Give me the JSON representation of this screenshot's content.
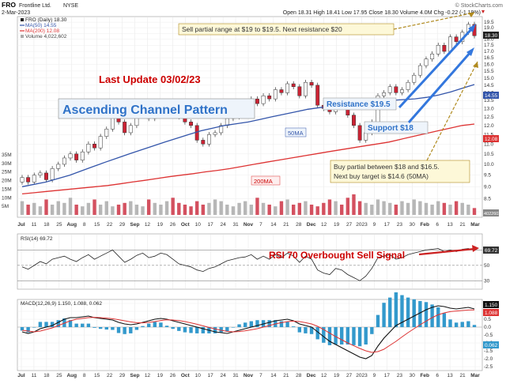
{
  "header": {
    "ticker": "FRO",
    "company": "Frontline Ltd.",
    "exchange": "NYSE",
    "date": "2-Mar-2023",
    "ohlc": "Open 18.31  High 18.41  Low 17.95  Close 18.30  Volume 4.0M  Chg -0.22 (-1.19%)",
    "chg_icon": "down-triangle-icon",
    "watermark": "© StockCharts.com"
  },
  "legend": {
    "price": "FRO (Daily) 18.30",
    "ma50": "MA(50) 14.55",
    "ma200": "MA(200) 12.08",
    "volume": "Volume 4,022,602"
  },
  "annotations": {
    "sell": "Sell partial range at $19 to $19.5. Next resistance $20",
    "last_update": "Last Update 03/02/23",
    "pattern": "Ascending Channel Pattern",
    "resistance": "Resistance $19.5",
    "support": "Support  $18",
    "ma50_tag": "50MA",
    "ma200_tag": "200MA",
    "buy_line1": "Buy partial between $18 and $16.5.",
    "buy_line2": "Next buy target is $14.6 (50MA)",
    "rsi_signal": "RSI 70 Overbought Sell Signal"
  },
  "rsi_panel": {
    "label": "RSI(14) 69.72",
    "badge": "69.72"
  },
  "macd_panel": {
    "label": "MACD(12,26,9) 1.150, 1.088, 0.062",
    "badge1": "1.150",
    "badge2": "1.088",
    "badge3": "0.062"
  },
  "colors": {
    "price": "#222222",
    "ma50": "#3355aa",
    "ma200": "#dd3333",
    "volume_up": "#aaaaaa",
    "volume_down": "#cc3344",
    "macd_hist": "#3399cc",
    "annotation_text": "#cc0000",
    "channel": "#3377dd",
    "arrow_gold": "#b08a1e"
  },
  "chart_data": {
    "type": "line",
    "title": "FRO Frontline Ltd. NYSE",
    "x_labels": [
      "Jul",
      "11",
      "18",
      "25",
      "Aug",
      "8",
      "15",
      "22",
      "29",
      "Sep",
      "12",
      "19",
      "26",
      "Oct",
      "10",
      "17",
      "24",
      "31",
      "Nov",
      "7",
      "14",
      "21",
      "28",
      "Dec",
      "12",
      "19",
      "27",
      "2023",
      "9",
      "17",
      "23",
      "30",
      "Feb",
      "6",
      "13",
      "21",
      "Mar"
    ],
    "price_ticks": [
      "19.5",
      "19.0",
      "18.5",
      "18.0",
      "17.5",
      "17.0",
      "16.5",
      "16.0",
      "15.5",
      "15.0",
      "14.5",
      "14.0",
      "13.5",
      "13.0",
      "12.5",
      "12.0",
      "11.5",
      "11.0",
      "10.5",
      "10.0",
      "9.5",
      "9.0",
      "8.5",
      "8.0"
    ],
    "volume_ticks": [
      "35M",
      "30M",
      "25M",
      "20M",
      "15M",
      "10M",
      "5M"
    ],
    "rsi_ticks": [
      "70",
      "50",
      "30"
    ],
    "macd_ticks": [
      "1.5",
      "1.0",
      "0.5",
      "0.0",
      "-0.5",
      "-1.0",
      "-1.5",
      "-2.0",
      "-2.5"
    ],
    "series": [
      {
        "name": "FRO (Daily) 18.30",
        "values": [
          9.4,
          9.2,
          9.5,
          9.6,
          9.3,
          9.8,
          10.0,
          10.3,
          10.5,
          10.2,
          10.6,
          11.0,
          10.8,
          11.4,
          11.8,
          12.5,
          12.2,
          11.6,
          12.0,
          12.6,
          12.9,
          12.4,
          12.8,
          13.2,
          13.4,
          13.0,
          12.5,
          12.2,
          12.0,
          11.2,
          11.0,
          11.5,
          11.6,
          12.0,
          12.4,
          12.5,
          12.9,
          13.1,
          13.6,
          13.3,
          13.8,
          13.6,
          14.2,
          14.0,
          14.6,
          14.4,
          13.8,
          14.7,
          14.5,
          13.2,
          13.0,
          12.8,
          13.4,
          13.2,
          12.6,
          12.0,
          11.2,
          11.6,
          12.2,
          13.8,
          14.0,
          14.4,
          14.0,
          14.2,
          14.7,
          15.2,
          15.9,
          16.4,
          16.8,
          17.5,
          17.0,
          18.2,
          17.8,
          18.6,
          19.3,
          18.3
        ]
      },
      {
        "name": "MA(50) 14.55",
        "values": [
          9.0,
          9.1,
          9.2,
          9.35,
          9.5,
          9.7,
          9.9,
          10.1,
          10.3,
          10.5,
          10.7,
          10.9,
          11.1,
          11.3,
          11.5,
          11.7,
          11.85,
          12.0,
          12.1,
          12.2,
          12.35,
          12.5,
          12.65,
          12.8,
          12.95,
          13.05,
          13.15,
          13.25,
          13.35,
          13.4,
          13.45,
          13.5,
          13.55,
          13.6,
          13.7,
          13.85,
          14.05,
          14.3,
          14.55
        ]
      },
      {
        "name": "MA(200) 12.08",
        "values": [
          8.7,
          8.75,
          8.8,
          8.85,
          8.9,
          8.95,
          9.0,
          9.05,
          9.12,
          9.2,
          9.27,
          9.35,
          9.43,
          9.5,
          9.57,
          9.65,
          9.72,
          9.8,
          9.9,
          10.0,
          10.1,
          10.2,
          10.3,
          10.4,
          10.5,
          10.6,
          10.7,
          10.8,
          10.9,
          11.0,
          11.1,
          11.25,
          11.4,
          11.55,
          11.7,
          11.85,
          12.0,
          12.08
        ]
      },
      {
        "name": "Volume 4,022,602",
        "values": [
          8,
          6,
          7,
          5,
          9,
          6,
          8,
          7,
          10,
          6,
          5,
          7,
          9,
          6,
          8,
          5,
          6,
          7,
          8,
          6,
          5,
          9,
          7,
          6,
          8,
          10,
          7,
          6,
          5,
          8,
          6,
          7,
          9,
          8,
          6,
          5,
          7,
          8,
          6,
          10,
          7,
          6,
          5,
          8,
          9,
          6,
          7,
          8,
          6,
          5,
          7,
          9,
          8,
          6,
          10,
          12,
          8,
          7,
          6,
          9,
          8,
          7,
          6,
          8,
          7,
          9,
          8,
          7,
          6,
          8,
          7,
          6,
          8,
          7,
          6,
          4
        ]
      },
      {
        "name": "RSI(14) 69.72",
        "values": [
          48,
          45,
          50,
          55,
          52,
          58,
          60,
          62,
          58,
          55,
          60,
          64,
          58,
          62,
          66,
          70,
          62,
          54,
          58,
          63,
          66,
          60,
          62,
          66,
          64,
          58,
          52,
          50,
          48,
          44,
          42,
          46,
          48,
          52,
          56,
          58,
          60,
          61,
          64,
          58,
          62,
          58,
          64,
          60,
          66,
          62,
          54,
          62,
          58,
          44,
          40,
          38,
          46,
          44,
          38,
          34,
          30,
          36,
          46,
          60,
          62,
          64,
          58,
          60,
          64,
          66,
          68,
          70,
          71,
          72,
          68,
          70,
          68,
          71,
          72,
          69.72
        ]
      },
      {
        "name": "MACD",
        "values": [
          -0.3,
          -0.4,
          -0.3,
          -0.1,
          0.0,
          0.1,
          0.3,
          0.5,
          0.6,
          0.6,
          0.65,
          0.7,
          0.6,
          0.55,
          0.5,
          0.45,
          0.3,
          0.2,
          0.15,
          0.2,
          0.3,
          0.4,
          0.5,
          0.55,
          0.5,
          0.4,
          0.3,
          0.2,
          0.1,
          0.0,
          -0.1,
          -0.2,
          -0.3,
          -0.35,
          -0.4,
          -0.3,
          -0.2,
          -0.1,
          0.0,
          0.1,
          0.2,
          0.3,
          0.4,
          0.45,
          0.5,
          0.4,
          0.2,
          0.1,
          0.0,
          -0.3,
          -0.6,
          -0.9,
          -1.1,
          -1.3,
          -1.5,
          -1.7,
          -1.9,
          -2.0,
          -1.8,
          -1.2,
          -0.7,
          -0.3,
          0.1,
          0.3,
          0.5,
          0.7,
          0.9,
          1.1,
          1.25,
          1.35,
          1.3,
          1.2,
          1.15,
          1.2,
          1.25,
          1.15
        ]
      },
      {
        "name": "Signal",
        "values": [
          -0.2,
          -0.25,
          -0.3,
          -0.25,
          -0.15,
          -0.05,
          0.1,
          0.25,
          0.4,
          0.5,
          0.55,
          0.6,
          0.62,
          0.6,
          0.57,
          0.53,
          0.47,
          0.4,
          0.33,
          0.28,
          0.27,
          0.3,
          0.35,
          0.42,
          0.46,
          0.45,
          0.41,
          0.35,
          0.27,
          0.18,
          0.08,
          -0.02,
          -0.12,
          -0.2,
          -0.27,
          -0.3,
          -0.28,
          -0.23,
          -0.17,
          -0.1,
          0.0,
          0.1,
          0.2,
          0.28,
          0.35,
          0.38,
          0.35,
          0.28,
          0.2,
          0.05,
          -0.15,
          -0.38,
          -0.6,
          -0.8,
          -1.0,
          -1.18,
          -1.35,
          -1.5,
          -1.6,
          -1.55,
          -1.4,
          -1.15,
          -0.9,
          -0.62,
          -0.35,
          -0.1,
          0.15,
          0.38,
          0.6,
          0.78,
          0.9,
          0.98,
          1.02,
          1.05,
          1.08,
          1.088
        ]
      }
    ]
  }
}
